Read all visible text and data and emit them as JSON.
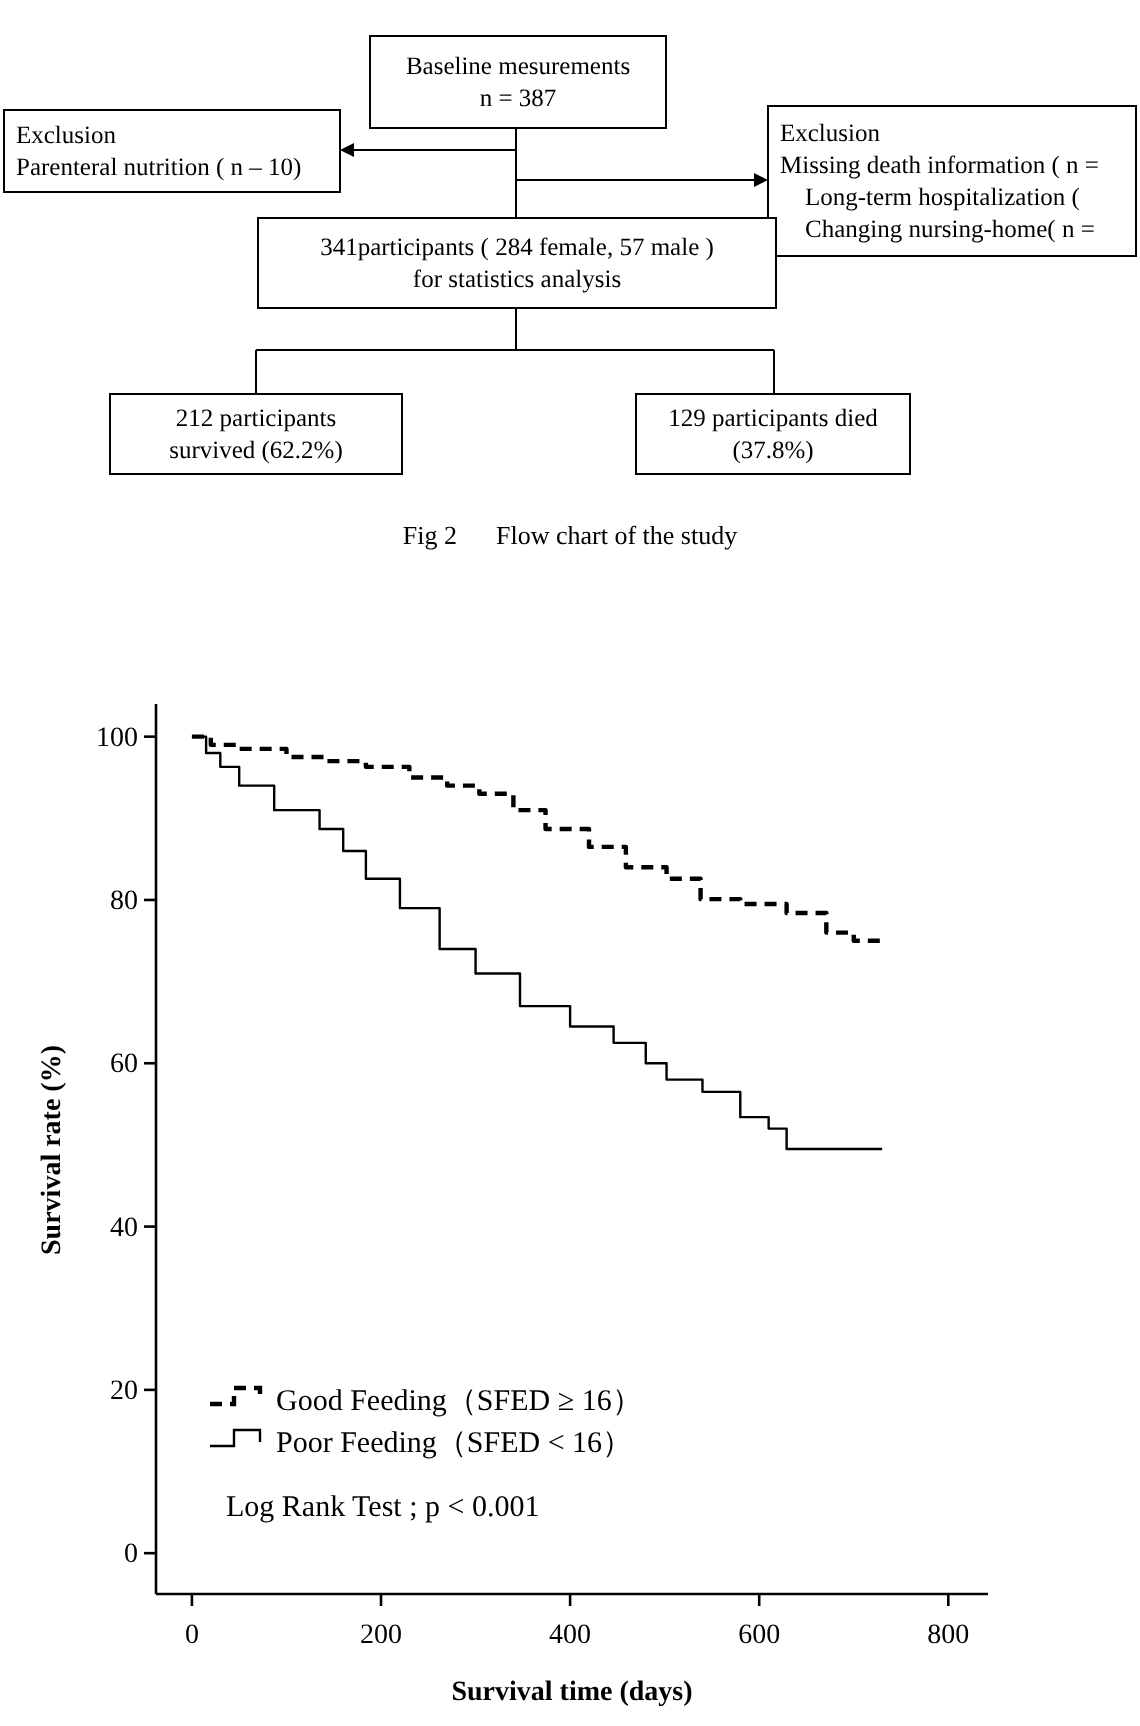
{
  "chart_data": [
    {
      "type": "other",
      "title": "Fig 2      Flow chart of the study",
      "annotations": [
        "Baseline mesurements\nn = 387",
        "Exclusion\nParenteral nutrition ( n – 10)",
        "Exclusion\nMissing death information ( n =\n    Long-term hospitalization (\n    Changing nursing-home( n =",
        "341participants ( 284 female, 57 male )\nfor statistics analysis",
        "212 participants\nsurvived (62.2%)",
        "129 participants died\n(37.8%)"
      ]
    },
    {
      "type": "step",
      "xlabel": "Survival time (days)",
      "ylabel": "Survival rate (%)",
      "xlim": [
        -38,
        842
      ],
      "ylim": [
        -5,
        104
      ],
      "xticks": [
        0,
        200,
        400,
        600,
        800
      ],
      "yticks": [
        0,
        20,
        40,
        60,
        80,
        100
      ],
      "legend": "bottom left",
      "annotations": [
        "Log Rank Test ; p < 0.001"
      ],
      "series": [
        {
          "name": "Good Feeding（SFED ≥ 16）",
          "color": "#000000",
          "line_style": "dashed",
          "x": [
            0,
            20,
            50,
            100,
            140,
            184,
            230,
            270,
            304,
            340,
            374,
            420,
            459,
            502,
            538,
            580,
            629,
            671,
            700,
            730
          ],
          "values": [
            100,
            99,
            98.5,
            97.5,
            97,
            96.3,
            95,
            94,
            93,
            91,
            88.7,
            86.5,
            84,
            82.6,
            80.1,
            79.5,
            78.4,
            76,
            75,
            74.5
          ]
        },
        {
          "name": "Poor Feeding（SFED < 16）",
          "color": "#000000",
          "line_style": "solid",
          "x": [
            0,
            15,
            30,
            50,
            87,
            135,
            160,
            184,
            220,
            262,
            300,
            347,
            400,
            446,
            480,
            502,
            540,
            580,
            610,
            629,
            730
          ],
          "values": [
            100,
            98,
            96.3,
            94,
            91,
            88.7,
            86,
            82.6,
            79,
            74,
            71,
            67,
            64.5,
            62.5,
            60,
            58,
            56.5,
            53.4,
            52,
            49.5,
            49.5
          ]
        }
      ]
    }
  ]
}
